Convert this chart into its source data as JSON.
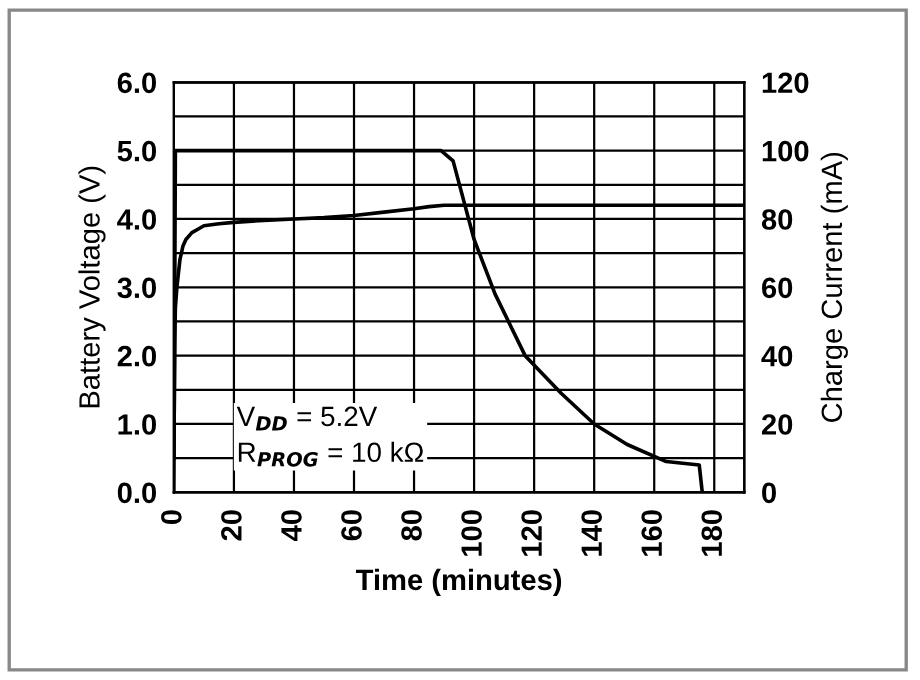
{
  "chart_data": {
    "type": "line",
    "xlabel": "Time (minutes)",
    "ylabel": "Battery Voltage (V)",
    "y2label": "Charge Current (mA)",
    "xlim": [
      0,
      190
    ],
    "xticks": [
      0,
      20,
      40,
      60,
      80,
      100,
      120,
      140,
      160,
      180
    ],
    "ylim": [
      0,
      6
    ],
    "yticks": [
      {
        "value": 0,
        "label": "0.0"
      },
      {
        "value": 0.5,
        "label": null
      },
      {
        "value": 1,
        "label": "1.0"
      },
      {
        "value": 1.5,
        "label": null
      },
      {
        "value": 2,
        "label": "2.0"
      },
      {
        "value": 2.5,
        "label": null
      },
      {
        "value": 3,
        "label": "3.0"
      },
      {
        "value": 3.5,
        "label": null
      },
      {
        "value": 4,
        "label": "4.0"
      },
      {
        "value": 4.5,
        "label": null
      },
      {
        "value": 5,
        "label": "5.0"
      },
      {
        "value": 5.5,
        "label": null
      },
      {
        "value": 6,
        "label": "6.0"
      }
    ],
    "y2lim": [
      0,
      120
    ],
    "y2ticks": [
      0,
      20,
      40,
      60,
      80,
      100,
      120
    ],
    "grid": true,
    "legend": false,
    "marker": "none",
    "line_style": "solid",
    "annotations": [
      "V$_{DD}$ = 5.2V",
      "R$_{PROG}$ = 10 kΩ"
    ],
    "series": [
      {
        "color": "#000000",
        "x": [
          0,
          0.3,
          0.5,
          1,
          2,
          3,
          4,
          6,
          8,
          10,
          15,
          20,
          30,
          40,
          50,
          60,
          70,
          80,
          85,
          90,
          100,
          120,
          140,
          160,
          180,
          190
        ],
        "values": [
          0.5,
          2.2,
          2.7,
          3.0,
          3.4,
          3.6,
          3.7,
          3.8,
          3.85,
          3.9,
          3.93,
          3.95,
          3.98,
          4.0,
          4.02,
          4.05,
          4.1,
          4.15,
          4.18,
          4.2,
          4.2,
          4.2,
          4.2,
          4.2,
          4.2,
          4.2
        ]
      },
      {
        "color": "#000000",
        "axis": "y2",
        "x": [
          0,
          0.5,
          20,
          40,
          60,
          80,
          89,
          93,
          100,
          107,
          117,
          129,
          140,
          151,
          164,
          175,
          176
        ],
        "values": [
          0,
          100,
          100,
          100,
          100,
          100,
          100,
          97,
          74,
          58,
          40,
          29,
          20,
          14,
          9,
          8,
          0
        ]
      }
    ]
  }
}
